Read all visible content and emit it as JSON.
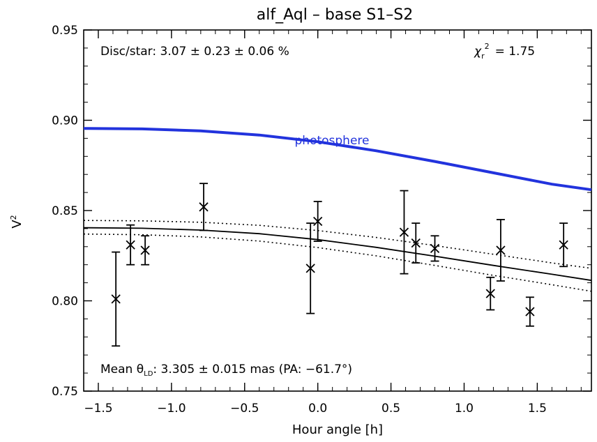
{
  "chart_data": {
    "type": "scatter",
    "title": "alf_Aql  –  base S1–S2",
    "xlabel": "Hour angle [h]",
    "ylabel": "V²",
    "xlim": [
      -1.6,
      1.87
    ],
    "ylim": [
      0.75,
      0.95
    ],
    "xticks": [
      "−1.5",
      "−1.0",
      "−0.5",
      "0.0",
      "0.5",
      "1.0",
      "1.5"
    ],
    "xtick_values": [
      -1.5,
      -1.0,
      -0.5,
      0.0,
      0.5,
      1.0,
      1.5
    ],
    "yticks": [
      "0.75",
      "0.80",
      "0.85",
      "0.90",
      "0.95"
    ],
    "ytick_values": [
      0.75,
      0.8,
      0.85,
      0.9,
      0.95
    ],
    "grid": false,
    "annotations": {
      "disc_star": "Disc/star:  3.07 ± 0.23 ± 0.06 %",
      "chi2": "χ",
      "chi2_value": "=  1.75",
      "chi2_sub": "r",
      "chi2_sup": "2",
      "mean_theta_prefix": "Mean θ",
      "mean_theta_sub": "LD",
      "mean_theta_value": ": 3.305 ± 0.015 mas (PA: −61.7°)",
      "photosphere_label": "photosphere"
    },
    "series": [
      {
        "kind": "points_with_error",
        "x": [
          -1.38,
          -1.28,
          -1.18,
          -0.78,
          -0.05,
          0.0,
          0.59,
          0.67,
          0.8,
          1.18,
          1.25,
          1.45,
          1.68
        ],
        "y": [
          0.801,
          0.831,
          0.828,
          0.852,
          0.818,
          0.844,
          0.838,
          0.832,
          0.829,
          0.804,
          0.828,
          0.794,
          0.831
        ],
        "yerr": [
          0.026,
          0.011,
          0.008,
          0.013,
          0.025,
          0.011,
          0.023,
          0.011,
          0.007,
          0.009,
          0.017,
          0.008,
          0.012
        ]
      },
      {
        "kind": "model",
        "name": "photosphere",
        "color": "#2233dd",
        "x": [
          -1.6,
          -1.2,
          -0.8,
          -0.4,
          0.0,
          0.4,
          0.8,
          1.2,
          1.6,
          1.87
        ],
        "y": [
          0.8955,
          0.8952,
          0.8941,
          0.8918,
          0.8881,
          0.8831,
          0.8772,
          0.8709,
          0.8646,
          0.8615
        ]
      },
      {
        "kind": "model",
        "color": "#000000",
        "x": [
          -1.6,
          -1.2,
          -0.8,
          -0.4,
          0.0,
          0.4,
          0.8,
          1.2,
          1.6,
          1.87
        ],
        "y": [
          0.8405,
          0.8402,
          0.8392,
          0.8372,
          0.8339,
          0.8296,
          0.8247,
          0.8196,
          0.8147,
          0.8113
        ]
      },
      {
        "kind": "model_upper",
        "color": "#000000",
        "x": [
          -1.6,
          -1.2,
          -0.8,
          -0.4,
          0.0,
          0.4,
          0.8,
          1.2,
          1.6,
          1.87
        ],
        "y": [
          0.8445,
          0.8443,
          0.8435,
          0.8418,
          0.8389,
          0.8351,
          0.8306,
          0.8258,
          0.821,
          0.818
        ]
      },
      {
        "kind": "model_lower",
        "color": "#000000",
        "x": [
          -1.6,
          -1.2,
          -0.8,
          -0.4,
          0.0,
          0.4,
          0.8,
          1.2,
          1.6,
          1.87
        ],
        "y": [
          0.837,
          0.8366,
          0.8354,
          0.8331,
          0.8295,
          0.8249,
          0.8196,
          0.8141,
          0.8089,
          0.8053
        ]
      }
    ]
  }
}
